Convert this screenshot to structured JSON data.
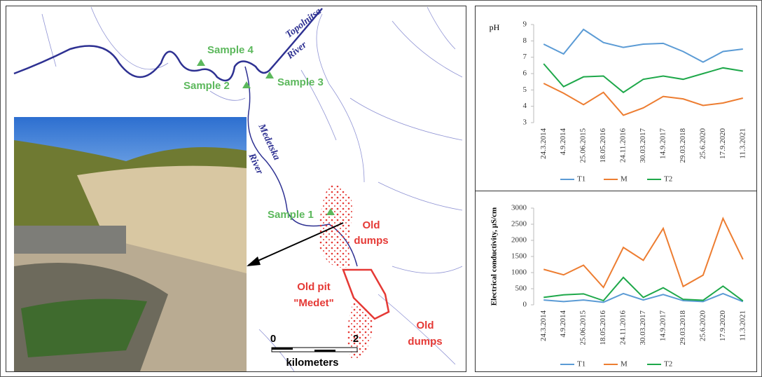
{
  "chart_data": [
    {
      "type": "line",
      "y_label": "pH",
      "categories": [
        "24.3.2014",
        "4.9.2014",
        "25.06.2015",
        "18.05.2016",
        "24.11.2016",
        "30.03.2017",
        "14.9.2017",
        "29.03.2018",
        "25.6.2020",
        "17.9.2020",
        "11.3.2021"
      ],
      "series": [
        {
          "name": "T1",
          "color": "#5b9bd5",
          "values": [
            7.8,
            7.2,
            8.7,
            7.9,
            7.6,
            7.8,
            7.85,
            7.35,
            6.7,
            7.35,
            7.5
          ]
        },
        {
          "name": "M",
          "color": "#ed7d31",
          "values": [
            5.4,
            4.8,
            4.1,
            4.85,
            3.45,
            3.9,
            4.6,
            4.45,
            4.05,
            4.2,
            4.5
          ]
        },
        {
          "name": "T2",
          "color": "#1ea84a",
          "values": [
            6.6,
            5.2,
            5.8,
            5.85,
            4.85,
            5.65,
            5.85,
            5.65,
            6.0,
            6.35,
            6.15
          ]
        }
      ],
      "ylim": [
        3,
        9
      ],
      "yticks": [
        3,
        4,
        5,
        6,
        7,
        8,
        9
      ],
      "grid": false,
      "legend": "bottom"
    },
    {
      "type": "line",
      "y_label": "Electrical conductivity, µS/cm",
      "categories": [
        "24.3.2014",
        "4.9.2014",
        "25.06.2015",
        "18.05.2016",
        "24.11.2016",
        "30.03.2017",
        "14.9.2017",
        "29.03.2018",
        "25.6.2020",
        "17.9.2020",
        "11.3.2021"
      ],
      "series": [
        {
          "name": "T1",
          "color": "#5b9bd5",
          "values": [
            150,
            100,
            150,
            80,
            350,
            150,
            320,
            130,
            100,
            350,
            100
          ]
        },
        {
          "name": "M",
          "color": "#ed7d31",
          "values": [
            1100,
            930,
            1230,
            540,
            1780,
            1380,
            2370,
            570,
            920,
            2680,
            1410
          ]
        },
        {
          "name": "T2",
          "color": "#1ea84a",
          "values": [
            230,
            310,
            340,
            130,
            850,
            230,
            530,
            170,
            140,
            580,
            120
          ]
        }
      ],
      "ylim": [
        0,
        3000
      ],
      "yticks": [
        0,
        500,
        1000,
        1500,
        2000,
        2500,
        3000
      ],
      "grid": false,
      "legend": "bottom"
    }
  ],
  "map": {
    "rivers": [
      "Topolnitsa",
      "River",
      "Medetska",
      "River"
    ],
    "samples": [
      "Sample 1",
      "Sample 2",
      "Sample 3",
      "Sample 4"
    ],
    "old_dumps_a": [
      "Old",
      "dumps"
    ],
    "old_dumps_b": [
      "Old",
      "dumps"
    ],
    "pit": [
      "Old pit",
      "\"Medet\""
    ],
    "scale": [
      "0",
      "2",
      "kilometers"
    ]
  }
}
